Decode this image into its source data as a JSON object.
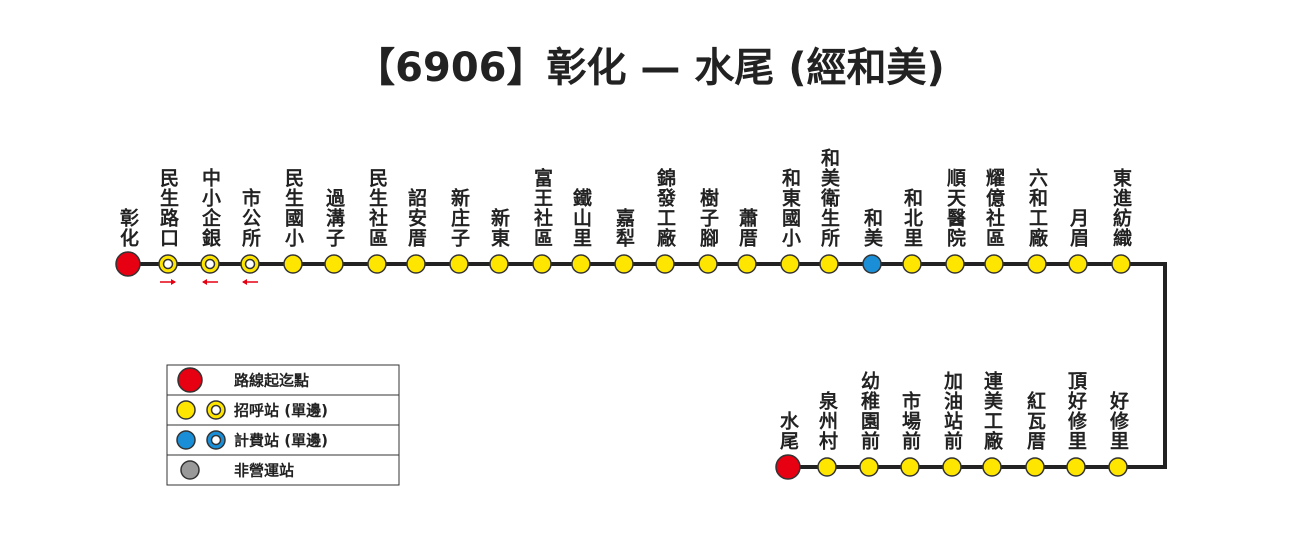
{
  "title": "【6906】彰化 — 水尾 (經和美)",
  "route": {
    "top": [
      {
        "name": "彰化",
        "type": "terminal"
      },
      {
        "name": "民生路口",
        "type": "stop-one-way",
        "arrow": "right"
      },
      {
        "name": "中小企銀",
        "type": "stop-one-way",
        "arrow": "left"
      },
      {
        "name": "市公所",
        "type": "stop-one-way",
        "arrow": "left"
      },
      {
        "name": "民生國小",
        "type": "stop"
      },
      {
        "name": "過溝子",
        "type": "stop"
      },
      {
        "name": "民生社區",
        "type": "stop"
      },
      {
        "name": "詔安厝",
        "type": "stop"
      },
      {
        "name": "新庄子",
        "type": "stop"
      },
      {
        "name": "新東",
        "type": "stop"
      },
      {
        "name": "富王社區",
        "type": "stop"
      },
      {
        "name": "鐵山里",
        "type": "stop"
      },
      {
        "name": "嘉犁",
        "type": "stop"
      },
      {
        "name": "錦發工廠",
        "type": "stop"
      },
      {
        "name": "樹子腳",
        "type": "stop"
      },
      {
        "name": "蕭厝",
        "type": "stop"
      },
      {
        "name": "和東國小",
        "type": "stop"
      },
      {
        "name": "和美衛生所",
        "type": "stop"
      },
      {
        "name": "和美",
        "type": "fare"
      },
      {
        "name": "和北里",
        "type": "stop"
      },
      {
        "name": "順天醫院",
        "type": "stop"
      },
      {
        "name": "耀億社區",
        "type": "stop"
      },
      {
        "name": "六和工廠",
        "type": "stop"
      },
      {
        "name": "月眉",
        "type": "stop"
      },
      {
        "name": "東進紡織",
        "type": "stop"
      }
    ],
    "bottom": [
      {
        "name": "好修里",
        "type": "stop"
      },
      {
        "name": "頂好修里",
        "type": "stop"
      },
      {
        "name": "紅瓦厝",
        "type": "stop"
      },
      {
        "name": "連美工廠",
        "type": "stop"
      },
      {
        "name": "加油站前",
        "type": "stop"
      },
      {
        "name": "市場前",
        "type": "stop"
      },
      {
        "name": "幼稚園前",
        "type": "stop"
      },
      {
        "name": "泉州村",
        "type": "stop"
      },
      {
        "name": "水尾",
        "type": "terminal"
      }
    ]
  },
  "legend": [
    {
      "label": "路線起迄點",
      "symbols": [
        "terminal"
      ]
    },
    {
      "label": "招呼站 (單邊)",
      "symbols": [
        "stop",
        "stop-one-way"
      ]
    },
    {
      "label": "計費站 (單邊)",
      "symbols": [
        "fare",
        "fare-one-way"
      ]
    },
    {
      "label": "非營運站",
      "symbols": [
        "closed"
      ]
    }
  ]
}
